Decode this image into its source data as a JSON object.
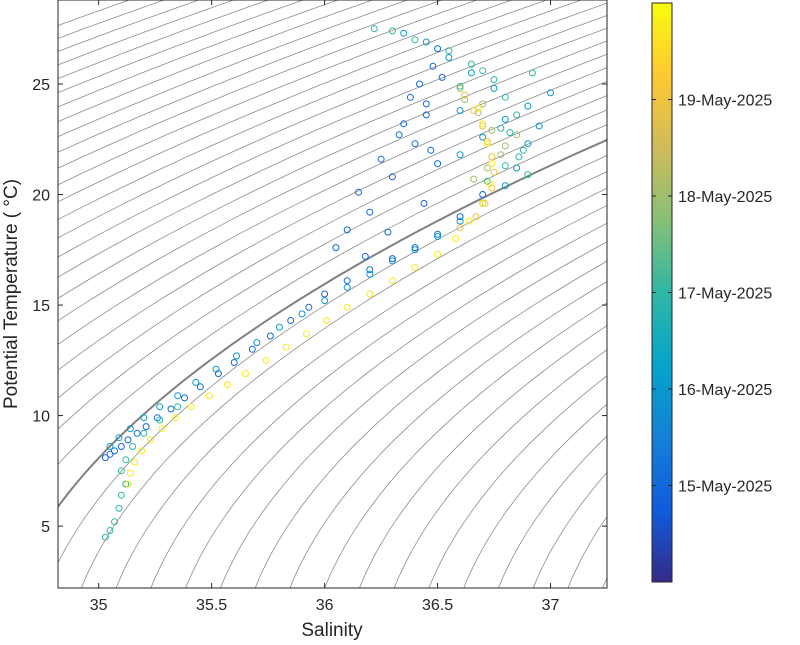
{
  "chart_data": {
    "type": "scatter",
    "title": "",
    "xlabel": "Salinity",
    "ylabel": "Potential Temperature ( °C)",
    "xlim": [
      34.82,
      37.25
    ],
    "ylim": [
      2.2,
      28.8
    ],
    "xticks": [
      35,
      35.5,
      36,
      36.5,
      37
    ],
    "xtick_labels": [
      "35",
      "35.5",
      "36",
      "36.5",
      "37"
    ],
    "yticks": [
      5,
      10,
      15,
      20,
      25
    ],
    "ytick_labels": [
      "5",
      "10",
      "15",
      "20",
      "25"
    ],
    "grid": false,
    "background_contours": "density isopleths (gray), one emphasized",
    "marker": "open-circle",
    "colormap": "parula",
    "colorbar": {
      "placement": "right",
      "range": [
        "2025-05-14",
        "2025-05-20"
      ],
      "tick_labels": [
        "15-May-2025",
        "16-May-2025",
        "17-May-2025",
        "18-May-2025",
        "19-May-2025"
      ]
    },
    "series": [
      {
        "date_value": "2025-05-15",
        "points": [
          [
            35.03,
            8.1
          ],
          [
            35.05,
            8.25
          ],
          [
            35.07,
            8.4
          ],
          [
            35.1,
            8.6
          ],
          [
            35.13,
            8.9
          ],
          [
            35.17,
            9.2
          ],
          [
            35.21,
            9.5
          ],
          [
            35.26,
            9.9
          ],
          [
            35.32,
            10.3
          ],
          [
            35.38,
            10.8
          ],
          [
            35.45,
            11.3
          ],
          [
            35.53,
            11.9
          ],
          [
            35.6,
            12.4
          ],
          [
            35.68,
            13.0
          ],
          [
            35.76,
            13.6
          ],
          [
            35.85,
            14.3
          ],
          [
            35.93,
            14.9
          ],
          [
            36.0,
            15.5
          ],
          [
            36.1,
            16.1
          ],
          [
            36.2,
            16.6
          ],
          [
            36.3,
            17.1
          ],
          [
            36.4,
            17.6
          ],
          [
            36.5,
            18.2
          ],
          [
            36.6,
            19.0
          ],
          [
            36.7,
            20.0
          ],
          [
            36.05,
            17.6
          ],
          [
            36.1,
            18.4
          ],
          [
            36.2,
            19.2
          ],
          [
            36.15,
            20.1
          ],
          [
            36.3,
            20.8
          ],
          [
            36.25,
            21.6
          ],
          [
            36.4,
            22.3
          ],
          [
            36.35,
            23.2
          ],
          [
            36.45,
            24.1
          ],
          [
            36.42,
            25.0
          ],
          [
            36.48,
            25.8
          ],
          [
            36.5,
            26.6
          ],
          [
            36.38,
            24.4
          ],
          [
            36.33,
            22.7
          ],
          [
            36.5,
            21.4
          ],
          [
            36.44,
            19.6
          ],
          [
            36.28,
            18.3
          ],
          [
            36.18,
            17.2
          ],
          [
            36.45,
            23.6
          ],
          [
            36.52,
            25.3
          ],
          [
            36.47,
            22.0
          ]
        ]
      },
      {
        "date_value": "2025-05-16",
        "points": [
          [
            35.05,
            8.6
          ],
          [
            35.09,
            9.0
          ],
          [
            35.14,
            9.4
          ],
          [
            35.2,
            9.9
          ],
          [
            35.27,
            10.4
          ],
          [
            35.35,
            10.9
          ],
          [
            35.43,
            11.5
          ],
          [
            35.52,
            12.1
          ],
          [
            35.61,
            12.7
          ],
          [
            35.7,
            13.3
          ],
          [
            35.8,
            14.0
          ],
          [
            35.9,
            14.6
          ],
          [
            36.0,
            15.2
          ],
          [
            36.1,
            15.8
          ],
          [
            36.2,
            16.4
          ],
          [
            36.3,
            17.0
          ],
          [
            36.4,
            17.5
          ],
          [
            36.5,
            18.1
          ],
          [
            36.6,
            18.8
          ],
          [
            36.7,
            19.6
          ],
          [
            36.8,
            20.4
          ],
          [
            36.6,
            21.8
          ],
          [
            36.7,
            22.6
          ],
          [
            36.8,
            23.4
          ],
          [
            36.9,
            24.0
          ],
          [
            36.75,
            24.8
          ],
          [
            36.65,
            25.5
          ],
          [
            36.55,
            26.2
          ],
          [
            36.45,
            26.9
          ],
          [
            36.35,
            27.3
          ],
          [
            36.9,
            22.3
          ],
          [
            36.85,
            21.2
          ],
          [
            36.6,
            23.8
          ],
          [
            36.95,
            23.1
          ],
          [
            37.0,
            24.6
          ]
        ]
      },
      {
        "date_value": "2025-05-17",
        "points": [
          [
            35.03,
            4.5
          ],
          [
            35.05,
            4.8
          ],
          [
            35.07,
            5.2
          ],
          [
            35.09,
            5.8
          ],
          [
            35.1,
            6.4
          ],
          [
            35.12,
            6.9
          ],
          [
            35.1,
            7.5
          ],
          [
            35.12,
            8.0
          ],
          [
            35.15,
            8.6
          ],
          [
            35.2,
            9.2
          ],
          [
            35.27,
            9.8
          ],
          [
            35.35,
            10.4
          ],
          [
            36.3,
            27.4
          ],
          [
            36.22,
            27.5
          ],
          [
            36.4,
            27.0
          ],
          [
            36.55,
            26.5
          ],
          [
            36.65,
            25.9
          ],
          [
            36.75,
            25.2
          ],
          [
            36.8,
            24.4
          ],
          [
            36.85,
            23.6
          ],
          [
            36.82,
            22.8
          ],
          [
            36.88,
            22.0
          ],
          [
            36.8,
            21.3
          ],
          [
            36.72,
            20.6
          ],
          [
            36.9,
            20.9
          ],
          [
            36.7,
            25.6
          ],
          [
            36.6,
            24.9
          ],
          [
            36.78,
            23.0
          ],
          [
            36.92,
            25.5
          ],
          [
            36.86,
            21.7
          ]
        ]
      },
      {
        "date_value": "2025-05-18",
        "points": [
          [
            36.6,
            24.8
          ],
          [
            36.68,
            23.7
          ],
          [
            36.74,
            22.9
          ],
          [
            36.8,
            22.2
          ],
          [
            36.85,
            22.7
          ],
          [
            36.78,
            21.8
          ],
          [
            36.72,
            21.2
          ],
          [
            36.66,
            20.7
          ],
          [
            36.62,
            24.3
          ],
          [
            36.7,
            24.1
          ]
        ]
      },
      {
        "date_value": "2025-05-19",
        "points": [
          [
            36.62,
            24.5
          ],
          [
            36.66,
            23.8
          ],
          [
            36.7,
            23.1
          ],
          [
            36.72,
            22.4
          ],
          [
            36.74,
            21.7
          ],
          [
            36.75,
            21.0
          ],
          [
            36.74,
            20.3
          ],
          [
            36.71,
            19.6
          ],
          [
            36.67,
            19.0
          ],
          [
            36.6,
            18.5
          ]
        ]
      },
      {
        "date_value": "2025-05-19T18:00",
        "points": [
          [
            35.13,
            6.9
          ],
          [
            35.14,
            7.4
          ],
          [
            35.16,
            7.9
          ],
          [
            35.19,
            8.4
          ],
          [
            35.23,
            8.9
          ],
          [
            35.28,
            9.4
          ],
          [
            35.34,
            9.9
          ],
          [
            35.41,
            10.4
          ],
          [
            35.49,
            10.9
          ],
          [
            35.57,
            11.4
          ],
          [
            35.65,
            11.9
          ],
          [
            35.74,
            12.5
          ],
          [
            35.83,
            13.1
          ],
          [
            35.92,
            13.7
          ],
          [
            36.01,
            14.3
          ],
          [
            36.1,
            14.9
          ],
          [
            36.2,
            15.5
          ],
          [
            36.3,
            16.1
          ],
          [
            36.4,
            16.7
          ],
          [
            36.5,
            17.3
          ],
          [
            36.58,
            18.0
          ],
          [
            36.64,
            18.8
          ],
          [
            36.7,
            19.6
          ],
          [
            36.73,
            20.5
          ],
          [
            36.74,
            21.4
          ],
          [
            36.72,
            22.3
          ],
          [
            36.7,
            23.2
          ],
          [
            36.68,
            23.9
          ]
        ]
      }
    ]
  }
}
